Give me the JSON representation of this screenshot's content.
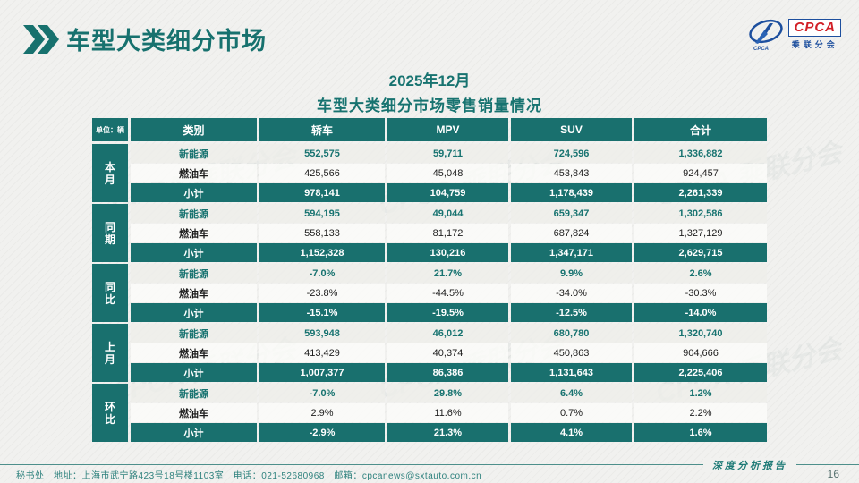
{
  "page": {
    "title": "车型大类细分市场",
    "subtitle_line1": "2025年12月",
    "subtitle_line2": "车型大类细分市场零售销量情况",
    "footer_left": "秘书处　地址：上海市武宁路423号18号楼1103室　电话：021-52680968　邮箱：cpcanews@sxtauto.com.cn",
    "footer_right": "深度分析报告",
    "page_number": "16",
    "watermark": "CPCA 乘联分会"
  },
  "logo": {
    "text": "CPCA",
    "subtext": "乘联分会"
  },
  "colors": {
    "accent_teal": "#19706e",
    "teal_text": "#177370",
    "logo_red": "#d22027",
    "logo_blue": "#1d4f9e",
    "page_bg": "#f1f1ef"
  },
  "table": {
    "unit_label": "单位：辆",
    "columns": [
      "类别",
      "轿车",
      "MPV",
      "SUV",
      "合计"
    ],
    "groups": [
      {
        "label": "本月",
        "rows": [
          {
            "category": "新能源",
            "style": "nev",
            "values": [
              "552,575",
              "59,711",
              "724,596",
              "1,336,882"
            ]
          },
          {
            "category": "燃油车",
            "style": "ice",
            "values": [
              "425,566",
              "45,048",
              "453,843",
              "924,457"
            ]
          },
          {
            "category": "小计",
            "style": "sub",
            "values": [
              "978,141",
              "104,759",
              "1,178,439",
              "2,261,339"
            ]
          }
        ]
      },
      {
        "label": "同期",
        "rows": [
          {
            "category": "新能源",
            "style": "nev",
            "values": [
              "594,195",
              "49,044",
              "659,347",
              "1,302,586"
            ]
          },
          {
            "category": "燃油车",
            "style": "ice",
            "values": [
              "558,133",
              "81,172",
              "687,824",
              "1,327,129"
            ]
          },
          {
            "category": "小计",
            "style": "sub",
            "values": [
              "1,152,328",
              "130,216",
              "1,347,171",
              "2,629,715"
            ]
          }
        ]
      },
      {
        "label": "同比",
        "rows": [
          {
            "category": "新能源",
            "style": "nev",
            "values": [
              "-7.0%",
              "21.7%",
              "9.9%",
              "2.6%"
            ]
          },
          {
            "category": "燃油车",
            "style": "ice",
            "values": [
              "-23.8%",
              "-44.5%",
              "-34.0%",
              "-30.3%"
            ]
          },
          {
            "category": "小计",
            "style": "sub",
            "values": [
              "-15.1%",
              "-19.5%",
              "-12.5%",
              "-14.0%"
            ]
          }
        ]
      },
      {
        "label": "上月",
        "rows": [
          {
            "category": "新能源",
            "style": "nev",
            "values": [
              "593,948",
              "46,012",
              "680,780",
              "1,320,740"
            ]
          },
          {
            "category": "燃油车",
            "style": "ice",
            "values": [
              "413,429",
              "40,374",
              "450,863",
              "904,666"
            ]
          },
          {
            "category": "小计",
            "style": "sub",
            "values": [
              "1,007,377",
              "86,386",
              "1,131,643",
              "2,225,406"
            ]
          }
        ]
      },
      {
        "label": "环比",
        "rows": [
          {
            "category": "新能源",
            "style": "nev",
            "values": [
              "-7.0%",
              "29.8%",
              "6.4%",
              "1.2%"
            ]
          },
          {
            "category": "燃油车",
            "style": "ice",
            "values": [
              "2.9%",
              "11.6%",
              "0.7%",
              "2.2%"
            ]
          },
          {
            "category": "小计",
            "style": "sub",
            "values": [
              "-2.9%",
              "21.3%",
              "4.1%",
              "1.6%"
            ]
          }
        ]
      }
    ]
  }
}
